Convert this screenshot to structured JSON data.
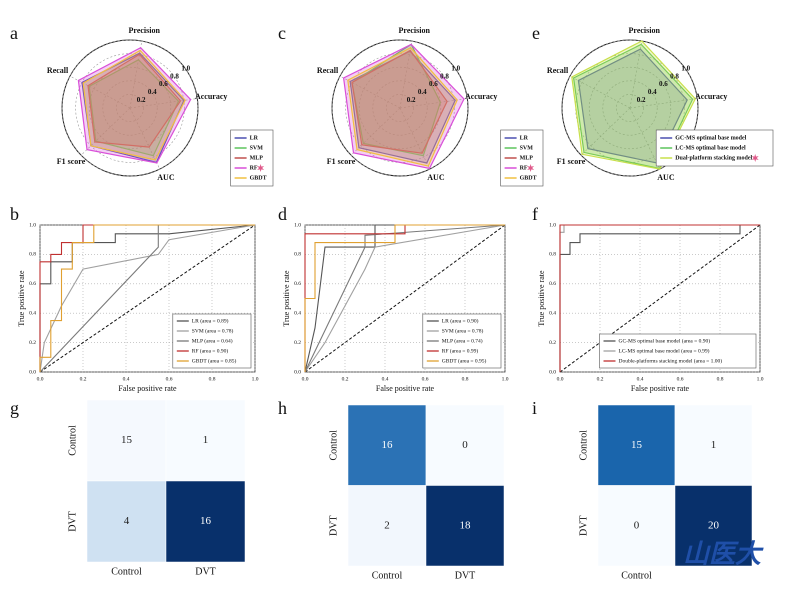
{
  "chart_data": [
    {
      "type": "radar",
      "label": "a",
      "categories": [
        "Precision",
        "Accuracy",
        "AUC",
        "F1 score",
        "Recall"
      ],
      "rlim": [
        0,
        1
      ],
      "rticks": [
        0.2,
        0.4,
        0.6,
        0.8,
        {
          "value": 1,
          "label": "1.0"
        }
      ],
      "series": [
        {
          "name": "LR",
          "color": "#4b4fb0",
          "values": [
            0.82,
            0.8,
            0.89,
            0.8,
            0.8
          ]
        },
        {
          "name": "SVM",
          "color": "#5cc45c",
          "values": [
            0.72,
            0.72,
            0.78,
            0.7,
            0.68
          ]
        },
        {
          "name": "MLP",
          "color": "#c0504d",
          "values": [
            0.8,
            0.75,
            0.64,
            0.72,
            0.7
          ]
        },
        {
          "name": "RF",
          "color": "#d94fd9",
          "values": [
            0.9,
            0.9,
            0.9,
            0.88,
            0.86
          ],
          "star": true
        },
        {
          "name": "GBDT",
          "color": "#f0c040",
          "values": [
            0.86,
            0.82,
            0.85,
            0.8,
            0.78
          ]
        }
      ]
    },
    {
      "type": "radar",
      "label": "c",
      "categories": [
        "Precision",
        "Accuracy",
        "AUC",
        "F1 score",
        "Recall"
      ],
      "rlim": [
        0,
        1
      ],
      "rticks": [
        0.2,
        0.4,
        0.6,
        0.8,
        {
          "value": 1,
          "label": "1.0"
        }
      ],
      "series": [
        {
          "name": "LR",
          "color": "#4b4fb0",
          "values": [
            0.85,
            0.82,
            0.9,
            0.84,
            0.83
          ]
        },
        {
          "name": "SVM",
          "color": "#5cc45c",
          "values": [
            0.95,
            0.6,
            0.78,
            0.75,
            0.8
          ]
        },
        {
          "name": "MLP",
          "color": "#c0504d",
          "values": [
            0.86,
            0.7,
            0.74,
            0.78,
            0.8
          ]
        },
        {
          "name": "RF",
          "color": "#d94fd9",
          "values": [
            0.95,
            0.95,
            0.99,
            0.95,
            0.94
          ],
          "star": true
        },
        {
          "name": "GBDT",
          "color": "#f0c040",
          "values": [
            0.9,
            0.85,
            0.95,
            0.88,
            0.87
          ]
        }
      ]
    },
    {
      "type": "radar",
      "label": "e",
      "categories": [
        "Precision",
        "Accuracy",
        "AUC",
        "F1 score",
        "Recall"
      ],
      "rlim": [
        0,
        1
      ],
      "rticks": [
        0.2,
        0.4,
        0.6,
        0.8,
        {
          "value": 1,
          "label": "1.0"
        }
      ],
      "series": [
        {
          "name": "GC-MS optimal base model",
          "color": "#4b4fb0",
          "values": [
            0.88,
            0.85,
            0.9,
            0.86,
            0.86
          ]
        },
        {
          "name": "LC-MS optimal base model",
          "color": "#5cc45c",
          "values": [
            0.95,
            0.93,
            0.99,
            0.94,
            0.94
          ]
        },
        {
          "name": "Dual-platform stacking model",
          "color": "#c8e04a",
          "values": [
            1,
            0.97,
            1,
            0.98,
            0.97
          ],
          "star": true
        }
      ]
    },
    {
      "type": "line",
      "label": "b",
      "xlabel": "False positive rate",
      "ylabel": "True positive rate",
      "xlim": [
        0,
        1
      ],
      "ylim": [
        0,
        1
      ],
      "grid": true,
      "xticks": [
        {
          "value": 0,
          "label": "0.0"
        },
        0.2,
        0.4,
        0.6,
        0.8,
        {
          "value": 1,
          "label": "1.0"
        }
      ],
      "yticks": [
        {
          "value": 0,
          "label": "0.0"
        },
        0.2,
        0.4,
        0.6,
        0.8,
        {
          "value": 1,
          "label": "1.0"
        }
      ],
      "series": [
        {
          "name": "LR (area = 0.89)",
          "color": "#555555",
          "x": [
            0,
            0,
            0.05,
            0.05,
            0.15,
            0.15,
            0.35,
            0.35,
            0.6,
            1
          ],
          "values": [
            0,
            0.6,
            0.6,
            0.75,
            0.75,
            0.88,
            0.88,
            0.94,
            0.94,
            1
          ]
        },
        {
          "name": "SVM (area = 0.78)",
          "color": "#a0a0a0",
          "x": [
            0,
            0.02,
            0.1,
            0.2,
            0.55,
            0.6,
            1
          ],
          "values": [
            0,
            0.2,
            0.45,
            0.7,
            0.8,
            0.9,
            1
          ]
        },
        {
          "name": "MLP (area = 0.64)",
          "color": "#7a7a7a",
          "x": [
            0,
            0.55,
            0.55,
            1
          ],
          "values": [
            0,
            0.85,
            1,
            1
          ]
        },
        {
          "name": "RF (area = 0.90)",
          "color": "#c03030",
          "x": [
            0,
            0,
            0.05,
            0.05,
            0.1,
            0.1,
            0.2,
            0.2,
            1
          ],
          "values": [
            0,
            0.75,
            0.75,
            0.8,
            0.8,
            0.88,
            0.88,
            1,
            1
          ]
        },
        {
          "name": "GBDT (area = 0.85)",
          "color": "#e0a030",
          "x": [
            0,
            0,
            0.05,
            0.05,
            0.1,
            0.1,
            0.15,
            0.15,
            0.25,
            0.25,
            1
          ],
          "values": [
            0,
            0.1,
            0.1,
            0.35,
            0.35,
            0.7,
            0.7,
            0.88,
            0.88,
            1,
            1
          ]
        }
      ]
    },
    {
      "type": "line",
      "label": "d",
      "xlabel": "False positive rate",
      "ylabel": "True positive rate",
      "xlim": [
        0,
        1
      ],
      "ylim": [
        0,
        1
      ],
      "grid": true,
      "xticks": [
        {
          "value": 0,
          "label": "0.0"
        },
        0.2,
        0.4,
        0.6,
        0.8,
        {
          "value": 1,
          "label": "1.0"
        }
      ],
      "yticks": [
        {
          "value": 0,
          "label": "0.0"
        },
        0.2,
        0.4,
        0.6,
        0.8,
        {
          "value": 1,
          "label": "1.0"
        }
      ],
      "series": [
        {
          "name": "LR (area = 0.90)",
          "color": "#555555",
          "x": [
            0,
            0.05,
            0.1,
            0.35,
            0.35,
            1
          ],
          "values": [
            0,
            0.3,
            0.85,
            0.85,
            1,
            1
          ]
        },
        {
          "name": "SVM (area = 0.78)",
          "color": "#a0a0a0",
          "x": [
            0,
            0.1,
            0.2,
            0.3,
            0.35,
            1
          ],
          "values": [
            0,
            0.2,
            0.45,
            0.7,
            0.85,
            1
          ]
        },
        {
          "name": "MLP (area = 0.74)",
          "color": "#7a7a7a",
          "x": [
            0,
            0.3,
            0.3,
            1
          ],
          "values": [
            0,
            0.85,
            0.93,
            1
          ]
        },
        {
          "name": "RF (area = 0.99)",
          "color": "#c03030",
          "x": [
            0,
            0,
            0.5,
            0.5,
            1
          ],
          "values": [
            0,
            0.94,
            0.94,
            1,
            1
          ]
        },
        {
          "name": "GBDT (area = 0.95)",
          "color": "#e0a030",
          "x": [
            0,
            0,
            0.05,
            0.05,
            0.45,
            0.45,
            1
          ],
          "values": [
            0,
            0.5,
            0.5,
            0.88,
            0.88,
            1,
            1
          ]
        }
      ]
    },
    {
      "type": "line",
      "label": "f",
      "xlabel": "False positive rate",
      "ylabel": "True positive rate",
      "xlim": [
        0,
        1
      ],
      "ylim": [
        0,
        1
      ],
      "grid": true,
      "xticks": [
        {
          "value": 0,
          "label": "0.0"
        },
        0.2,
        0.4,
        0.6,
        0.8,
        {
          "value": 1,
          "label": "1.0"
        }
      ],
      "yticks": [
        {
          "value": 0,
          "label": "0.0"
        },
        0.2,
        0.4,
        0.6,
        0.8,
        {
          "value": 1,
          "label": "1.0"
        }
      ],
      "series": [
        {
          "name": "GC-MS optimal base model (area = 0.90)",
          "color": "#555555",
          "x": [
            0,
            0,
            0.05,
            0.05,
            0.1,
            0.1,
            0.9,
            0.9,
            1
          ],
          "values": [
            0,
            0.8,
            0.8,
            0.88,
            0.88,
            0.94,
            0.94,
            1,
            1
          ]
        },
        {
          "name": "LC-MS optimal base model (area = 0.99)",
          "color": "#a0a0a0",
          "x": [
            0,
            0,
            0.02,
            0.02,
            1
          ],
          "values": [
            0,
            0.95,
            0.95,
            1,
            1
          ]
        },
        {
          "name": "Double-platforms stacking model (area = 1.00)",
          "color": "#c03030",
          "x": [
            0,
            0,
            1
          ],
          "values": [
            0,
            1,
            1
          ]
        }
      ]
    },
    {
      "type": "confusion_matrix",
      "label": "g",
      "x_categories": [
        "Control",
        "DVT"
      ],
      "y_categories": [
        "Control",
        "DVT"
      ],
      "values": [
        [
          15,
          1
        ],
        [
          4,
          16
        ]
      ],
      "cell_colors": [
        [
          "#f5f9fe",
          "#f7fbff"
        ],
        [
          "#cfe1f2",
          "#08306b"
        ]
      ]
    },
    {
      "type": "confusion_matrix",
      "label": "h",
      "x_categories": [
        "Control",
        "DVT"
      ],
      "y_categories": [
        "Control",
        "DVT"
      ],
      "values": [
        [
          16,
          0
        ],
        [
          2,
          18
        ]
      ],
      "cell_colors": [
        [
          "#2b72b5",
          "#f7fbff"
        ],
        [
          "#f2f7fd",
          "#08306b"
        ]
      ]
    },
    {
      "type": "confusion_matrix",
      "label": "i",
      "x_categories": [
        "Control",
        null
      ],
      "y_categories": [
        "Control",
        "DVT"
      ],
      "values": [
        [
          15,
          1
        ],
        [
          0,
          20
        ]
      ],
      "cell_colors": [
        [
          "#1a65ac",
          "#f7fbff"
        ],
        [
          "#f7fbff",
          "#08306b"
        ]
      ]
    }
  ],
  "watermark": "山医大"
}
